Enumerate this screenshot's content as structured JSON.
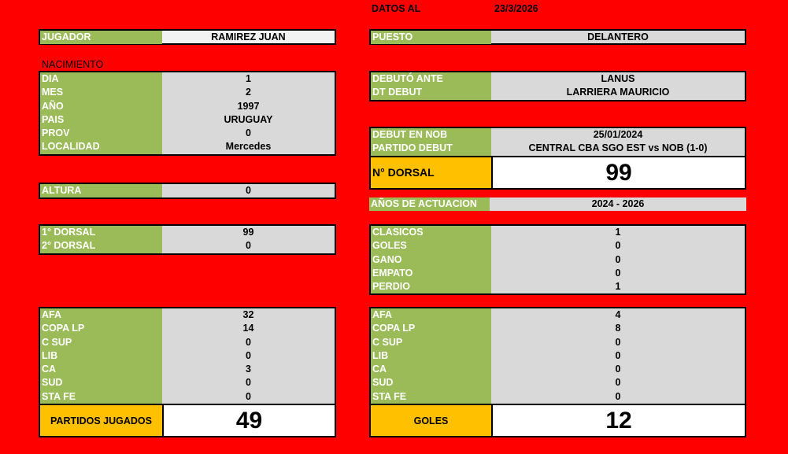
{
  "header": {
    "datos_label": "DATOS AL",
    "date": "23/3/2026"
  },
  "jugador": {
    "label": "JUGADOR",
    "value": "RAMIREZ JUAN"
  },
  "puesto": {
    "label": "PUESTO",
    "value": "DELANTERO"
  },
  "nacimiento_title": "NACIMIENTO",
  "nacimiento": [
    {
      "label": "DIA",
      "value": "1"
    },
    {
      "label": "MES",
      "value": "2"
    },
    {
      "label": "AÑO",
      "value": "1997"
    },
    {
      "label": "PAIS",
      "value": "URUGUAY"
    },
    {
      "label": "PROV",
      "value": "0"
    },
    {
      "label": "LOCALIDAD",
      "value": "Mercedes"
    }
  ],
  "debut_rival": [
    {
      "label": "DEBUTÓ ANTE",
      "value": "LANUS"
    },
    {
      "label": "DT DEBUT",
      "value": "LARRIERA MAURICIO"
    }
  ],
  "debut_nob": [
    {
      "label": "DEBUT EN NOB",
      "value": "25/01/2024"
    },
    {
      "label": "PARTIDO DEBUT",
      "value": "CENTRAL CBA SGO EST vs NOB (1-0)"
    }
  ],
  "dorsal_total": {
    "label": "N° DORSAL",
    "value": "99"
  },
  "altura": [
    {
      "label": "ALTURA",
      "value": "0"
    }
  ],
  "anos": [
    {
      "label": "AÑOS DE ACTUACION",
      "value": "2024 - 2026"
    }
  ],
  "dorsales": [
    {
      "label": "1° DORSAL",
      "value": "99"
    },
    {
      "label": "2° DORSAL",
      "value": "0"
    }
  ],
  "clasicos": [
    {
      "label": "CLASICOS",
      "value": "1"
    },
    {
      "label": "GOLES",
      "value": "0"
    },
    {
      "label": "GANO",
      "value": "0"
    },
    {
      "label": "EMPATO",
      "value": "0"
    },
    {
      "label": "PERDIO",
      "value": "1"
    }
  ],
  "partidos": [
    {
      "label": "AFA",
      "value": "32"
    },
    {
      "label": "COPA LP",
      "value": "14"
    },
    {
      "label": "C SUP",
      "value": "0"
    },
    {
      "label": "LIB",
      "value": "0"
    },
    {
      "label": "CA",
      "value": "3"
    },
    {
      "label": "SUD",
      "value": "0"
    },
    {
      "label": "STA FE",
      "value": "0"
    }
  ],
  "partidos_total": {
    "label": "PARTIDOS JUGADOS",
    "value": "49"
  },
  "goles": [
    {
      "label": "AFA",
      "value": "4"
    },
    {
      "label": "COPA LP",
      "value": "8"
    },
    {
      "label": "C SUP",
      "value": "0"
    },
    {
      "label": "LIB",
      "value": "0"
    },
    {
      "label": "CA",
      "value": "0"
    },
    {
      "label": "SUD",
      "value": "0"
    },
    {
      "label": "STA FE",
      "value": "0"
    }
  ],
  "goles_total": {
    "label": "GOLES",
    "value": "12"
  }
}
